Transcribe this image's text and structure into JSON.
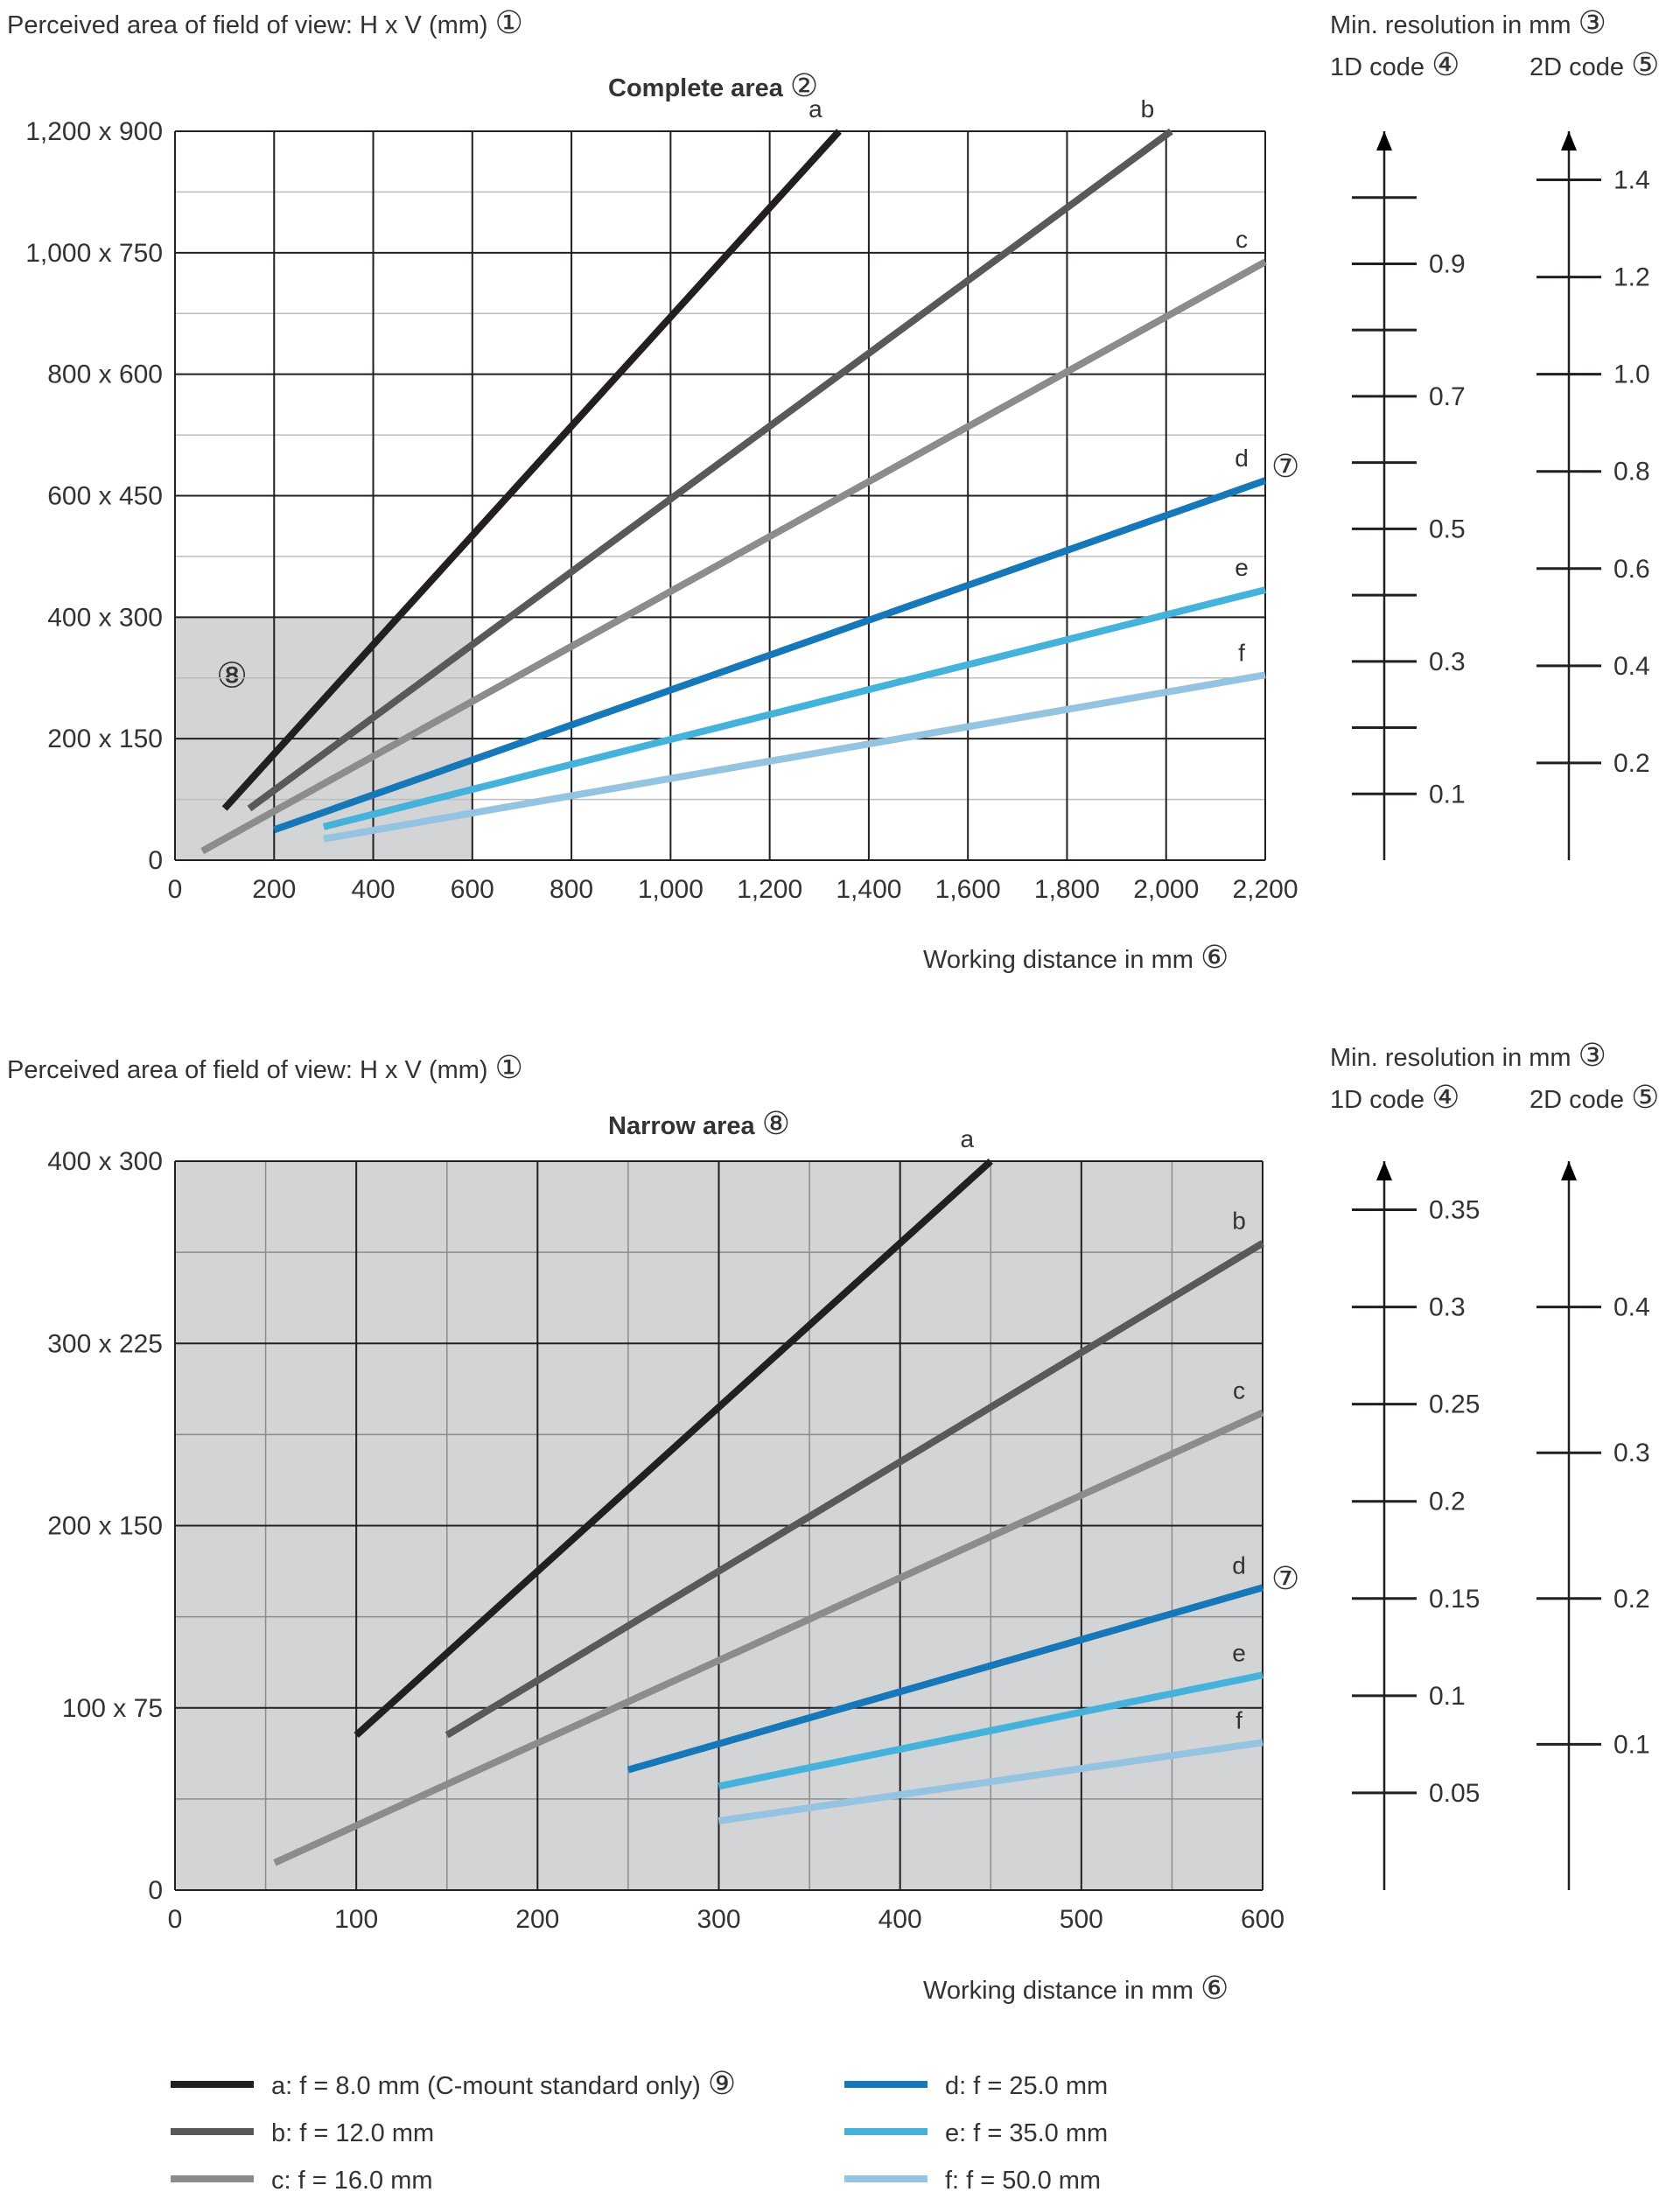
{
  "panels": [
    {
      "ylabel": "Perceived area of field of view: H x V (mm)",
      "ylabel_marker": "①",
      "title": "Complete area",
      "title_marker": "②",
      "xlabel": "Working distance in mm",
      "xlabel_marker": "⑥",
      "focal_marker": "⑦",
      "inset_marker": "⑧",
      "res_title": "Min. resolution in mm",
      "res_title_marker": "③",
      "code1_label": "1D code",
      "code1_marker": "④",
      "code2_label": "2D code",
      "code2_marker": "⑤"
    },
    {
      "ylabel": "Perceived area of field of view: H x V (mm)",
      "ylabel_marker": "①",
      "title": "Narrow area",
      "title_marker": "⑧",
      "xlabel": "Working distance in mm",
      "xlabel_marker": "⑥",
      "focal_marker": "⑦",
      "res_title": "Min. resolution in mm",
      "res_title_marker": "③",
      "code1_label": "1D code",
      "code1_marker": "④",
      "code2_label": "2D code",
      "code2_marker": "⑤"
    }
  ],
  "legend": {
    "items": [
      {
        "label": "a: f = 8.0 mm (C-mount standard only)",
        "marker": "⑨",
        "color": "#231f20"
      },
      {
        "label": "b: f = 12.0 mm",
        "color": "#595959"
      },
      {
        "label": "c: f = 16.0 mm",
        "color": "#8c8c8c"
      },
      {
        "label": "d: f = 25.0 mm",
        "color": "#1677b9"
      },
      {
        "label": "e: f = 35.0 mm",
        "color": "#45b2dc"
      },
      {
        "label": "f:  f = 50.0 mm",
        "color": "#95c3e2"
      }
    ]
  },
  "chart_data": [
    {
      "type": "line",
      "title": "Complete area",
      "xlabel": "Working distance in mm",
      "ylabel": "Perceived area of field of view: H x V (mm)",
      "xlim": [
        0,
        2200
      ],
      "ylim": [
        0,
        1200
      ],
      "x_ticks": [
        0,
        200,
        400,
        600,
        800,
        1000,
        1200,
        1400,
        1600,
        1800,
        2000,
        2200
      ],
      "x_tick_labels": [
        "0",
        "200",
        "400",
        "600",
        "800",
        "1,000",
        "1,200",
        "1,400",
        "1,600",
        "1,800",
        "2,000",
        "2,200"
      ],
      "y_ticks": [
        0,
        200,
        400,
        600,
        800,
        1000,
        1200
      ],
      "y_tick_labels": [
        "0",
        "200 x 150",
        "400 x 300",
        "600 x 450",
        "800 x 600",
        "1,000 x 750",
        "1,200 x 900"
      ],
      "grid": true,
      "inset_region": {
        "x": [
          0,
          600
        ],
        "y": [
          0,
          400
        ]
      },
      "series": [
        {
          "name": "a",
          "color": "#231f20",
          "x": [
            100,
            1340
          ],
          "y": [
            85,
            1200
          ]
        },
        {
          "name": "b",
          "color": "#595959",
          "x": [
            150,
            2010
          ],
          "y": [
            85,
            1200
          ]
        },
        {
          "name": "c",
          "color": "#8c8c8c",
          "x": [
            55,
            2200
          ],
          "y": [
            15,
            985
          ]
        },
        {
          "name": "d",
          "color": "#1677b9",
          "x": [
            200,
            2200
          ],
          "y": [
            50,
            625
          ]
        },
        {
          "name": "e",
          "color": "#45b2dc",
          "x": [
            300,
            2200
          ],
          "y": [
            55,
            445
          ]
        },
        {
          "name": "f",
          "color": "#95c3e2",
          "x": [
            300,
            2200
          ],
          "y": [
            35,
            305
          ]
        }
      ],
      "resolution_1d": {
        "ticks": [
          0.1,
          0.2,
          0.3,
          0.4,
          0.5,
          0.6,
          0.7,
          0.8,
          0.9,
          1.0
        ],
        "labels": [
          "0.1",
          "0.3",
          "0.5",
          "0.7",
          "0.9"
        ]
      },
      "resolution_2d": {
        "ticks": [
          0.2,
          0.4,
          0.6,
          0.8,
          1.0,
          1.2,
          1.4
        ],
        "labels": [
          "0.2",
          "0.4",
          "0.6",
          "0.8",
          "1.0",
          "1.2",
          "1.4"
        ]
      }
    },
    {
      "type": "line",
      "title": "Narrow area",
      "xlabel": "Working distance in mm",
      "ylabel": "Perceived area of field of view: H x V (mm)",
      "xlim": [
        0,
        600
      ],
      "ylim": [
        0,
        400
      ],
      "x_ticks": [
        0,
        100,
        200,
        300,
        400,
        500,
        600
      ],
      "x_tick_labels": [
        "0",
        "100",
        "200",
        "300",
        "400",
        "500",
        "600"
      ],
      "y_ticks": [
        0,
        100,
        200,
        300,
        400
      ],
      "y_tick_labels": [
        "0",
        "100 x 75",
        "200 x 150",
        "300 x 225",
        "400 x 300"
      ],
      "grid": true,
      "series": [
        {
          "name": "a",
          "color": "#231f20",
          "x": [
            100,
            450
          ],
          "y": [
            85,
            400
          ]
        },
        {
          "name": "b",
          "color": "#595959",
          "x": [
            150,
            600
          ],
          "y": [
            85,
            355
          ]
        },
        {
          "name": "c",
          "color": "#8c8c8c",
          "x": [
            55,
            600
          ],
          "y": [
            15,
            262
          ]
        },
        {
          "name": "d",
          "color": "#1677b9",
          "x": [
            250,
            600
          ],
          "y": [
            66,
            166
          ]
        },
        {
          "name": "e",
          "color": "#45b2dc",
          "x": [
            300,
            600
          ],
          "y": [
            57,
            118
          ]
        },
        {
          "name": "f",
          "color": "#95c3e2",
          "x": [
            300,
            600
          ],
          "y": [
            38,
            81
          ]
        }
      ],
      "resolution_1d": {
        "ticks": [
          0.05,
          0.1,
          0.15,
          0.2,
          0.25,
          0.3,
          0.35
        ],
        "labels": [
          "0.05",
          "0.1",
          "0.15",
          "0.2",
          "0.25",
          "0.3",
          "0.35"
        ]
      },
      "resolution_2d": {
        "ticks": [
          0.1,
          0.2,
          0.3,
          0.4
        ],
        "labels": [
          "0.1",
          "0.2",
          "0.3",
          "0.4"
        ]
      }
    }
  ]
}
